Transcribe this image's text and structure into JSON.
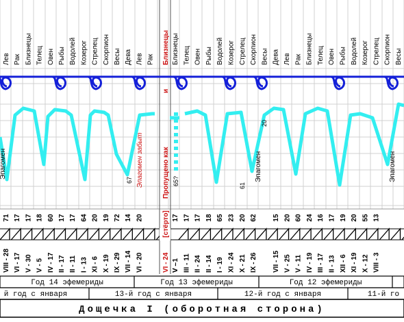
{
  "sign_labels": [
    "Лев",
    "Рак",
    "Близнецы",
    "Телец",
    "Овен",
    "Рыбы",
    "Водолей",
    "Козерог",
    "Стрелец",
    "Скорпион",
    "Весы",
    "Дева",
    "Лев",
    "Рак",
    "Близнецы",
    "Телец",
    "Овен",
    "Рыбы",
    "Водолей",
    "Козерог",
    "Стрелец",
    "Скорпион",
    "Весы",
    "Дева",
    "Лев",
    "Рак",
    "Близнецы",
    "Телец",
    "Овен",
    "Рыбы",
    "Водолей",
    "Козерог",
    "Стрелец",
    "Скорпион",
    "Весы",
    "Дева"
  ],
  "day_numbers": [
    "71",
    "17",
    "17",
    "18",
    "60",
    "17",
    "17",
    "64",
    "20",
    "19",
    "72",
    "14",
    "20",
    "",
    "17",
    "17",
    "17",
    "18",
    "65",
    "23",
    "20",
    "62",
    "",
    "15",
    "20",
    "60",
    "24",
    "16",
    "17",
    "19",
    "20",
    "55",
    "13"
  ],
  "date_labels": [
    "VIII - 28",
    "VI - 17",
    "V - 30",
    "V - 5",
    "IV - 17",
    "II - 17",
    "II - 11",
    "I - 13",
    "XI - 6",
    "X - 19",
    "IX - 29",
    "VII - 14",
    "VI - 20",
    "",
    "V - 1",
    "III - 11",
    "II - 24",
    "II - 14",
    "I - 19",
    "XI - 24",
    "X - 21",
    "IX - 26",
    "",
    "VII - 15",
    "V - 25",
    "V - 11",
    "IV - 19",
    "III - 17",
    "II - 13",
    "XII - 6",
    "XI - 19",
    "X - 12",
    "VIII - 3"
  ],
  "special_column": {
    "top_label": "Близнецы",
    "mid_label": "и",
    "vertical_text": "Пропущено    как",
    "bottom_top": "[стёрто]",
    "bottom_bottom": "VI - 24",
    "dash_label": "V –"
  },
  "annotations": {
    "epagomen_1": "Эпагомен",
    "epagomen_forgotten": "Эпагомен забыт",
    "epagomen_2": "Эпагомен",
    "epagomen_3": "Эпагомен",
    "num_67": "67",
    "num_65q": "65?",
    "num_61": "61",
    "num_20": "20"
  },
  "ephemeris_row": [
    "Год 14 эфемериды",
    "Год 13 эфемериды",
    "Год 12 эфемериды"
  ],
  "january_row": [
    "й год с января",
    "13-й год с января",
    "12-й год с января",
    "11-й го"
  ],
  "footer": "Дощечка  I  (оборотная  сторона)",
  "colors": {
    "blue_line": "#1420d8",
    "cyan_line": "#33eef0",
    "red_text": "#cc1111",
    "grid": "#d0d0d0"
  }
}
